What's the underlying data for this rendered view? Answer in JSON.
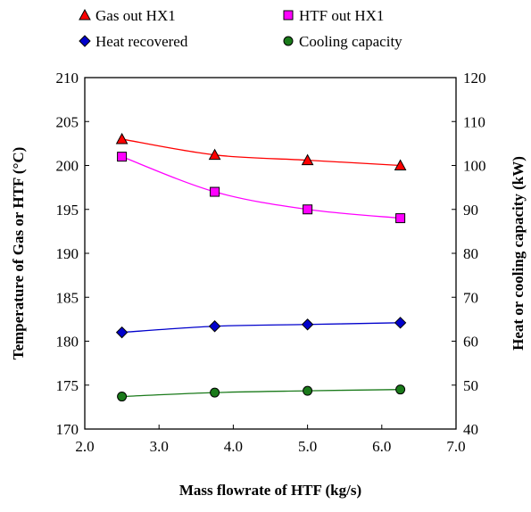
{
  "chart_data": {
    "type": "line",
    "title": "",
    "xlabel": "Mass flowrate of HTF (kg/s)",
    "ylabel_left": "Temperature of Gas or HTF (°C)",
    "ylabel_right": "Heat or cooling capacity (kW)",
    "xlim": [
      2.0,
      7.0
    ],
    "xticks": [
      "2.0",
      "3.0",
      "4.0",
      "5.0",
      "6.0",
      "7.0"
    ],
    "ylim_left": [
      170,
      210
    ],
    "yticks_left": [
      "170",
      "175",
      "180",
      "185",
      "190",
      "195",
      "200",
      "205",
      "210"
    ],
    "ylim_right": [
      40,
      120
    ],
    "yticks_right": [
      "40",
      "50",
      "60",
      "70",
      "80",
      "90",
      "100",
      "110",
      "120"
    ],
    "grid": false,
    "legend_position": "top",
    "series": [
      {
        "name": "Gas out HX1",
        "axis": "left",
        "marker": "triangle",
        "color": "#ff0000",
        "x": [
          2.5,
          3.75,
          5.0,
          6.25
        ],
        "y": [
          203.0,
          201.2,
          200.6,
          200.0
        ]
      },
      {
        "name": "HTF out HX1",
        "axis": "left",
        "marker": "square",
        "color": "#ff00ff",
        "x": [
          2.5,
          3.75,
          5.0,
          6.25
        ],
        "y": [
          201.0,
          197.0,
          195.0,
          194.0
        ]
      },
      {
        "name": "Heat recovered",
        "axis": "right",
        "marker": "diamond",
        "color": "#0000cc",
        "x": [
          2.5,
          3.75,
          5.0,
          6.25
        ],
        "y": [
          62.0,
          63.4,
          63.8,
          64.2
        ]
      },
      {
        "name": "Cooling capacity",
        "axis": "right",
        "marker": "circle",
        "color": "#1a7a1a",
        "x": [
          2.5,
          3.75,
          5.0,
          6.25
        ],
        "y": [
          47.4,
          48.3,
          48.7,
          49.0
        ]
      }
    ]
  }
}
